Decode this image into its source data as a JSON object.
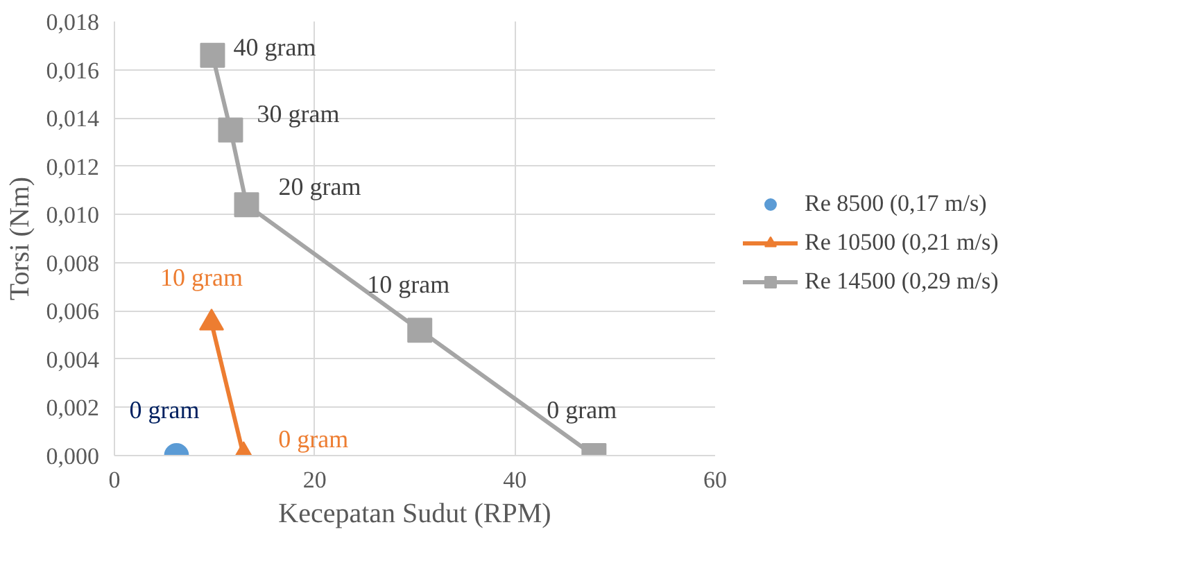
{
  "chart_data": {
    "type": "line",
    "xlabel": "Kecepatan Sudut (RPM)",
    "ylabel": "Torsi (Nm)",
    "xlim": [
      0,
      60
    ],
    "xticks": [
      0,
      20,
      40,
      60
    ],
    "ylim": [
      0,
      0.018
    ],
    "yticks": [
      {
        "value": 0,
        "label": "0,000"
      },
      {
        "value": 0.002,
        "label": "0,002"
      },
      {
        "value": 0.004,
        "label": "0,004"
      },
      {
        "value": 0.006,
        "label": "0,006"
      },
      {
        "value": 0.008,
        "label": "0,008"
      },
      {
        "value": 0.01,
        "label": "0,010"
      },
      {
        "value": 0.012,
        "label": "0,012"
      },
      {
        "value": 0.014,
        "label": "0,014"
      },
      {
        "value": 0.016,
        "label": "0,016"
      },
      {
        "value": 0.018,
        "label": "0,018"
      }
    ],
    "grid": true,
    "legend": "right",
    "series": [
      {
        "name": "Re 8500 (0,17 m/s)",
        "marker": "circle",
        "color": "#5b9bd5",
        "x": [
          6.2
        ],
        "values": [
          0
        ]
      },
      {
        "name": "Re 10500 (0,21 m/s)",
        "marker": "triangle",
        "color": "#ed7d31",
        "x": [
          9.7,
          12.9
        ],
        "values": [
          0.0055,
          0
        ]
      },
      {
        "name": "Re 14500 (0,29 m/s)",
        "marker": "square",
        "color": "#a5a5a5",
        "x": [
          9.8,
          11.6,
          13.2,
          30.5,
          47.9
        ],
        "values": [
          0.0166,
          0.0135,
          0.0104,
          0.0052,
          0
        ]
      }
    ],
    "annotations": [
      {
        "text": "0 gram",
        "x": 6.2,
        "y": 0
      },
      {
        "text": "10 gram",
        "x": 9.7,
        "y": 0.0055
      },
      {
        "text": "0 gram",
        "x": 12.9,
        "y": 0
      },
      {
        "text": "40 gram",
        "x": 9.8,
        "y": 0.0166
      },
      {
        "text": "30 gram",
        "x": 11.6,
        "y": 0.0135
      },
      {
        "text": "20 gram",
        "x": 13.2,
        "y": 0.0104
      },
      {
        "text": "10 gram",
        "x": 30.5,
        "y": 0.0052
      },
      {
        "text": "0 gram",
        "x": 47.9,
        "y": 0
      }
    ]
  }
}
